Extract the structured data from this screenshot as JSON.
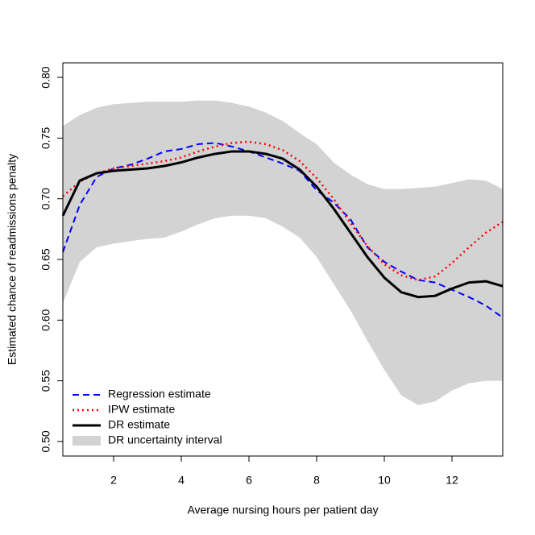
{
  "chart_data": {
    "type": "line",
    "xlabel": "Average nursing hours per patient day",
    "ylabel": "Estimated chance of readmissions penalty",
    "xlim": [
      0.5,
      13.5
    ],
    "ylim": [
      0.488,
      0.812
    ],
    "xticks": [
      2,
      4,
      6,
      8,
      10,
      12
    ],
    "yticks": [
      {
        "value": 0.5,
        "label": "0.50"
      },
      {
        "value": 0.55,
        "label": "0.55"
      },
      {
        "value": 0.6,
        "label": "0.60"
      },
      {
        "value": 0.65,
        "label": "0.65"
      },
      {
        "value": 0.7,
        "label": "0.70"
      },
      {
        "value": 0.75,
        "label": "0.75"
      },
      {
        "value": 0.8,
        "label": "0.80"
      }
    ],
    "legend": "bottomleft",
    "x": [
      0.5,
      1,
      1.5,
      2,
      2.5,
      3,
      3.5,
      4,
      4.5,
      5,
      5.5,
      6,
      6.5,
      7,
      7.5,
      8,
      8.5,
      9,
      9.5,
      10,
      10.5,
      11,
      11.5,
      12,
      12.5,
      13,
      13.5
    ],
    "band": {
      "name": "DR uncertainty interval",
      "color": "#d3d3d3",
      "upper": [
        0.76,
        0.769,
        0.775,
        0.778,
        0.779,
        0.78,
        0.78,
        0.78,
        0.781,
        0.781,
        0.779,
        0.776,
        0.771,
        0.764,
        0.754,
        0.745,
        0.73,
        0.72,
        0.712,
        0.708,
        0.708,
        0.709,
        0.71,
        0.713,
        0.716,
        0.715,
        0.708
      ],
      "lower": [
        0.614,
        0.648,
        0.66,
        0.663,
        0.665,
        0.667,
        0.668,
        0.673,
        0.679,
        0.684,
        0.686,
        0.686,
        0.684,
        0.677,
        0.668,
        0.652,
        0.63,
        0.608,
        0.583,
        0.559,
        0.538,
        0.53,
        0.533,
        0.542,
        0.548,
        0.55,
        0.55
      ]
    },
    "series": [
      {
        "name": "Regression estimate",
        "color": "#0000ff",
        "linestyle": "dashed",
        "values": [
          0.656,
          0.695,
          0.718,
          0.725,
          0.728,
          0.733,
          0.739,
          0.741,
          0.745,
          0.746,
          0.743,
          0.739,
          0.734,
          0.729,
          0.723,
          0.707,
          0.697,
          0.683,
          0.66,
          0.648,
          0.64,
          0.633,
          0.631,
          0.625,
          0.619,
          0.612,
          0.602
        ]
      },
      {
        "name": "IPW estimate",
        "color": "#ff0000",
        "linestyle": "dotted",
        "values": [
          0.702,
          0.714,
          0.721,
          0.725,
          0.727,
          0.729,
          0.731,
          0.734,
          0.739,
          0.743,
          0.746,
          0.747,
          0.745,
          0.74,
          0.731,
          0.717,
          0.7,
          0.68,
          0.661,
          0.646,
          0.637,
          0.633,
          0.636,
          0.647,
          0.66,
          0.672,
          0.681
        ]
      },
      {
        "name": "DR estimate",
        "color": "#000000",
        "linestyle": "solid",
        "values": [
          0.686,
          0.715,
          0.721,
          0.723,
          0.724,
          0.725,
          0.727,
          0.73,
          0.734,
          0.737,
          0.739,
          0.739,
          0.737,
          0.733,
          0.724,
          0.71,
          0.692,
          0.672,
          0.652,
          0.635,
          0.623,
          0.619,
          0.62,
          0.626,
          0.631,
          0.632,
          0.628
        ]
      }
    ]
  }
}
